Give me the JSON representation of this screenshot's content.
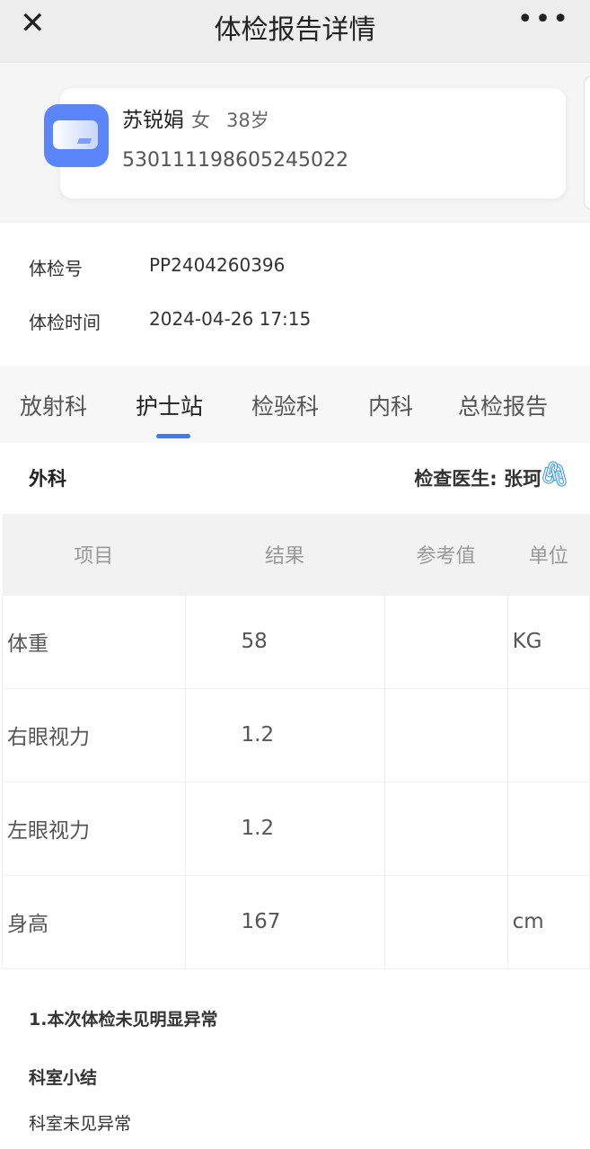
{
  "header": {
    "title": "体检报告详情",
    "close_icon": "close-icon",
    "more_icon": "more-icon"
  },
  "patient": {
    "name": "苏锐娟",
    "gender": "女",
    "age": "38岁",
    "id_number": "530111198605245022",
    "avatar_icon": "id-card-icon",
    "avatar_color": "#5b86f9"
  },
  "exam": {
    "number_label": "体检号",
    "number": "PP2404260396",
    "time_label": "体检时间",
    "time": "2024-04-26 17:15"
  },
  "tabs": [
    {
      "label": "放射科"
    },
    {
      "label": "护士站",
      "active": true
    },
    {
      "label": "检验科"
    },
    {
      "label": "内科"
    },
    {
      "label": "总检报告"
    }
  ],
  "section": {
    "department": "外科",
    "doctor": "检查医生: 张珂",
    "attachment_icon": "paperclip-icon"
  },
  "table": {
    "headers": [
      "项目",
      "结果",
      "参考值",
      "单位"
    ],
    "rows": [
      [
        "体重",
        "58",
        "",
        "KG"
      ],
      [
        "右眼视力",
        "1.2",
        "",
        ""
      ],
      [
        "左眼视力",
        "1.2",
        "",
        ""
      ],
      [
        "身高",
        "167",
        "",
        "cm"
      ]
    ]
  },
  "summary": {
    "conclusion": "1.本次体检未见明显异常",
    "title": "科室小结",
    "text": "科室未见异常"
  },
  "accent": "#3d7bf5"
}
